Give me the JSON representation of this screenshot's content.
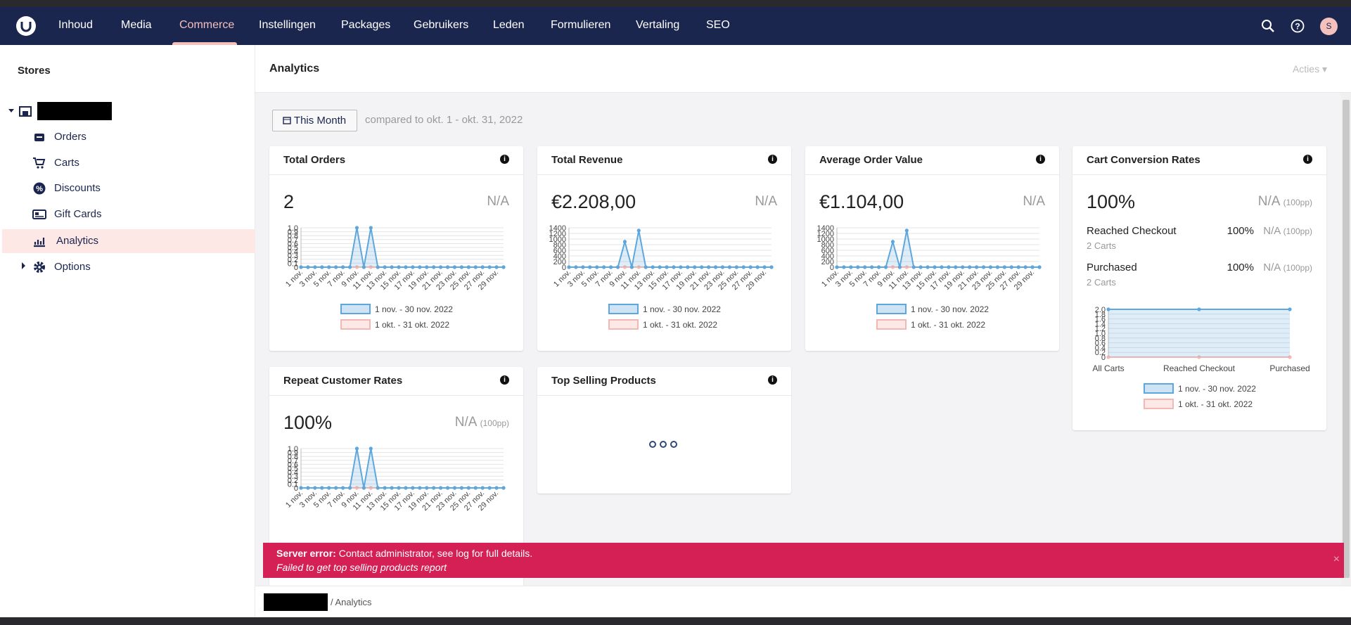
{
  "nav": {
    "items": [
      "Inhoud",
      "Media",
      "Commerce",
      "Instellingen",
      "Packages",
      "Gebruikers",
      "Leden",
      "Formulieren",
      "Vertaling",
      "SEO"
    ],
    "active": 2,
    "avatar": "S"
  },
  "sidebar": {
    "title": "Stores",
    "items": [
      "Orders",
      "Carts",
      "Discounts",
      "Gift Cards",
      "Analytics",
      "Options"
    ],
    "active": 4
  },
  "header": {
    "title": "Analytics",
    "actions": "Acties"
  },
  "filter": {
    "button": "This Month",
    "compare": "compared to okt. 1 - okt. 31, 2022"
  },
  "cards": [
    {
      "title": "Total Orders",
      "value": "2",
      "compare": "N/A",
      "chart": {
        "type": "line",
        "categories": [
          "1 nov.",
          null,
          "3 nov.",
          null,
          "5 nov.",
          null,
          "7 nov.",
          null,
          "9 nov.",
          null,
          "11 nov.",
          null,
          "13 nov.",
          null,
          "15 nov.",
          null,
          "17 nov.",
          null,
          "19 nov.",
          null,
          "21 nov.",
          null,
          "23 nov.",
          null,
          "25 nov.",
          null,
          "27 nov.",
          null,
          "29 nov.",
          null
        ],
        "series": [
          {
            "name": "1 nov. - 30 nov. 2022",
            "color": "#5da7dc",
            "values": [
              0,
              0,
              0,
              0,
              0,
              0,
              0,
              0,
              1,
              0,
              1,
              0,
              0,
              0,
              0,
              0,
              0,
              0,
              0,
              0,
              0,
              0,
              0,
              0,
              0,
              0,
              0,
              0,
              0,
              0
            ]
          },
          {
            "name": "1 okt. - 31 okt. 2022",
            "color": "#f5b7b1",
            "values": [
              0,
              0,
              0,
              0,
              0,
              0,
              0,
              0,
              0,
              0,
              0,
              0,
              0,
              0,
              0,
              0,
              0,
              0,
              0,
              0,
              0,
              0,
              0,
              0,
              0,
              0,
              0,
              0,
              0,
              0
            ]
          }
        ],
        "ylim": [
          0,
          1
        ],
        "yticks": [
          0,
          0.1,
          0.2,
          0.3,
          0.4,
          0.5,
          0.6,
          0.7,
          0.8,
          0.9,
          {
            "value": 1,
            "label": "1.0"
          }
        ],
        "grid": true
      }
    },
    {
      "title": "Total Revenue",
      "value": "€2.208,00",
      "compare": "N/A",
      "chart": {
        "type": "line",
        "categories": [
          "1 nov.",
          null,
          "3 nov.",
          null,
          "5 nov.",
          null,
          "7 nov.",
          null,
          "9 nov.",
          null,
          "11 nov.",
          null,
          "13 nov.",
          null,
          "15 nov.",
          null,
          "17 nov.",
          null,
          "19 nov.",
          null,
          "21 nov.",
          null,
          "23 nov.",
          null,
          "25 nov.",
          null,
          "27 nov.",
          null,
          "29 nov.",
          null
        ],
        "series": [
          {
            "name": "1 nov. - 30 nov. 2022",
            "color": "#5da7dc",
            "values": [
              0,
              0,
              0,
              0,
              0,
              0,
              0,
              0,
              904,
              0,
              1304,
              0,
              0,
              0,
              0,
              0,
              0,
              0,
              0,
              0,
              0,
              0,
              0,
              0,
              0,
              0,
              0,
              0,
              0,
              0
            ]
          },
          {
            "name": "1 okt. - 31 okt. 2022",
            "color": "#f5b7b1",
            "values": [
              0,
              0,
              0,
              0,
              0,
              0,
              0,
              0,
              0,
              0,
              0,
              0,
              0,
              0,
              0,
              0,
              0,
              0,
              0,
              0,
              0,
              0,
              0,
              0,
              0,
              0,
              0,
              0,
              0,
              0
            ]
          }
        ],
        "ylim": [
          0,
          1400
        ],
        "yticks": [
          0,
          200,
          400,
          600,
          800,
          1000,
          1200,
          1400
        ],
        "grid": true
      }
    },
    {
      "title": "Average Order Value",
      "value": "€1.104,00",
      "compare": "N/A",
      "chart": {
        "type": "line",
        "categories": [
          "1 nov.",
          null,
          "3 nov.",
          null,
          "5 nov.",
          null,
          "7 nov.",
          null,
          "9 nov.",
          null,
          "11 nov.",
          null,
          "13 nov.",
          null,
          "15 nov.",
          null,
          "17 nov.",
          null,
          "19 nov.",
          null,
          "21 nov.",
          null,
          "23 nov.",
          null,
          "25 nov.",
          null,
          "27 nov.",
          null,
          "29 nov.",
          null
        ],
        "series": [
          {
            "name": "1 nov. - 30 nov. 2022",
            "color": "#5da7dc",
            "values": [
              0,
              0,
              0,
              0,
              0,
              0,
              0,
              0,
              904,
              0,
              1304,
              0,
              0,
              0,
              0,
              0,
              0,
              0,
              0,
              0,
              0,
              0,
              0,
              0,
              0,
              0,
              0,
              0,
              0,
              0
            ]
          },
          {
            "name": "1 okt. - 31 okt. 2022",
            "color": "#f5b7b1",
            "values": [
              0,
              0,
              0,
              0,
              0,
              0,
              0,
              0,
              0,
              0,
              0,
              0,
              0,
              0,
              0,
              0,
              0,
              0,
              0,
              0,
              0,
              0,
              0,
              0,
              0,
              0,
              0,
              0,
              0,
              0
            ]
          }
        ],
        "ylim": [
          0,
          1400
        ],
        "yticks": [
          0,
          200,
          400,
          600,
          800,
          1000,
          1200,
          1400
        ],
        "grid": true
      }
    },
    {
      "title": "Cart Conversion Rates",
      "value": "100%",
      "compare": "N/A",
      "compare_note": "(100pp)",
      "rows": [
        {
          "label": "Reached Checkout",
          "detail": "2 Carts",
          "value": "100%",
          "compare": "N/A",
          "compare_note": "(100pp)"
        },
        {
          "label": "Purchased",
          "detail": "2 Carts",
          "value": "100%",
          "compare": "N/A",
          "compare_note": "(100pp)"
        }
      ],
      "chart": {
        "type": "line",
        "categories": [
          "All Carts",
          "Reached Checkout",
          "Purchased"
        ],
        "series": [
          {
            "name": "1 nov. - 30 nov. 2022",
            "color": "#5da7dc",
            "values": [
              2,
              2,
              2
            ]
          },
          {
            "name": "1 okt. - 31 okt. 2022",
            "color": "#f5b7b1",
            "values": [
              0,
              0,
              0
            ]
          }
        ],
        "ylim": [
          0,
          2
        ],
        "yticks": [
          0,
          0.2,
          0.4,
          0.6,
          0.8,
          {
            "value": 1,
            "label": "1.0"
          },
          1.2,
          1.4,
          1.6,
          1.8,
          {
            "value": 2,
            "label": "2.0"
          }
        ],
        "grid": true
      }
    },
    {
      "title": "Repeat Customer Rates",
      "value": "100%",
      "compare": "N/A",
      "compare_note": "(100pp)",
      "chart": {
        "type": "line",
        "categories": [
          "1 nov.",
          null,
          "3 nov.",
          null,
          "5 nov.",
          null,
          "7 nov.",
          null,
          "9 nov.",
          null,
          "11 nov.",
          null,
          "13 nov.",
          null,
          "15 nov.",
          null,
          "17 nov.",
          null,
          "19 nov.",
          null,
          "21 nov.",
          null,
          "23 nov.",
          null,
          "25 nov.",
          null,
          "27 nov.",
          null,
          "29 nov.",
          null
        ],
        "series": [
          {
            "color": "#5da7dc",
            "values": [
              0,
              0,
              0,
              0,
              0,
              0,
              0,
              0,
              1,
              0,
              1,
              0,
              0,
              0,
              0,
              0,
              0,
              0,
              0,
              0,
              0,
              0,
              0,
              0,
              0,
              0,
              0,
              0,
              0,
              0
            ]
          },
          {
            "color": "#f5b7b1",
            "values": [
              0,
              0,
              0,
              0,
              0,
              0,
              0,
              0,
              0,
              0,
              0,
              0,
              0,
              0,
              0,
              0,
              0,
              0,
              0,
              0,
              0,
              0,
              0,
              0,
              0,
              0,
              0,
              0,
              0,
              0
            ]
          }
        ],
        "ylim": [
          0,
          1
        ],
        "yticks": [
          0,
          0.1,
          0.2,
          0.3,
          0.4,
          0.5,
          0.6,
          0.7,
          0.8,
          0.9,
          {
            "value": 1,
            "label": "1.0"
          }
        ],
        "grid": true
      }
    },
    {
      "title": "Top Selling Products",
      "loading": true
    }
  ],
  "error": {
    "title": "Server error:",
    "message": "Contact administrator, see log for full details.",
    "detail": "Failed to get top selling products report"
  },
  "breadcrumb": {
    "current": "Analytics"
  }
}
